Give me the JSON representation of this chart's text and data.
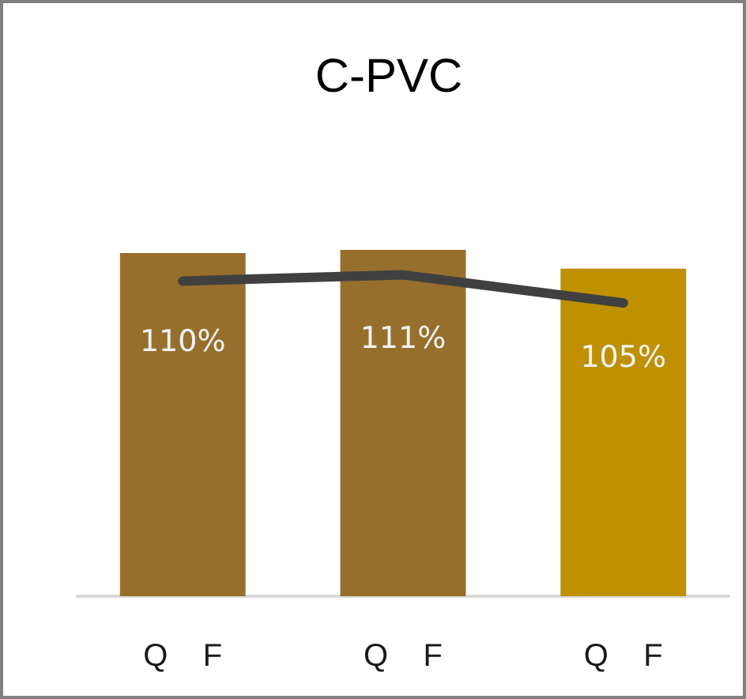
{
  "chart_data": {
    "type": "bar",
    "title": "C-PVC",
    "categories": [
      "Q    F",
      "Q    F",
      "Q    F"
    ],
    "series": [
      {
        "colors": [
          "#976f2d",
          "#976f2d",
          "#bf9000"
        ],
        "values": [
          110,
          111,
          105
        ],
        "value_labels": [
          "110%",
          "111%",
          "105%"
        ]
      },
      {
        "type": "line",
        "color": "#404040",
        "values": [
          101,
          103,
          94
        ]
      }
    ]
  }
}
